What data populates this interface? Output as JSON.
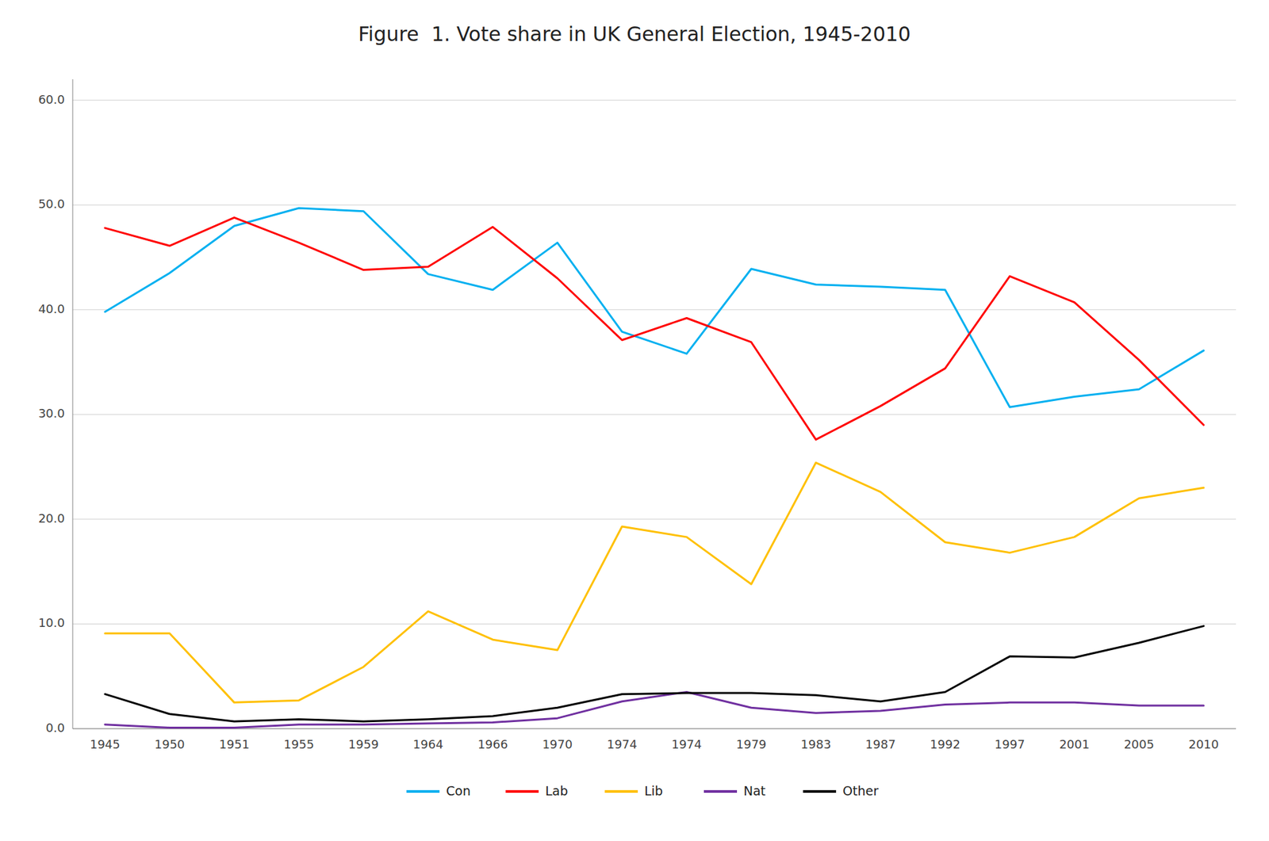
{
  "chart_data": {
    "type": "line",
    "title": "Figure  1. Vote share in UK General Election, 1945-2010",
    "categories": [
      "1945",
      "1950",
      "1951",
      "1955",
      "1959",
      "1964",
      "1966",
      "1970",
      "1974",
      "1974",
      "1979",
      "1983",
      "1987",
      "1992",
      "1997",
      "2001",
      "2005",
      "2010"
    ],
    "series": [
      {
        "name": "Con",
        "color": "#00B0F0",
        "values": [
          39.8,
          43.5,
          48.0,
          49.7,
          49.4,
          43.4,
          41.9,
          46.4,
          37.9,
          35.8,
          43.9,
          42.4,
          42.2,
          41.9,
          30.7,
          31.7,
          32.4,
          36.1
        ]
      },
      {
        "name": "Lab",
        "color": "#FF0000",
        "values": [
          47.8,
          46.1,
          48.8,
          46.4,
          43.8,
          44.1,
          47.9,
          43.0,
          37.1,
          39.2,
          36.9,
          27.6,
          30.8,
          34.4,
          43.2,
          40.7,
          35.2,
          29.0
        ]
      },
      {
        "name": "Lib",
        "color": "#FFC000",
        "values": [
          9.1,
          9.1,
          2.5,
          2.7,
          5.9,
          11.2,
          8.5,
          7.5,
          19.3,
          18.3,
          13.8,
          25.4,
          22.6,
          17.8,
          16.8,
          18.3,
          22.0,
          23.0
        ]
      },
      {
        "name": "Nat",
        "color": "#7030A0",
        "values": [
          0.4,
          0.1,
          0.1,
          0.4,
          0.4,
          0.5,
          0.6,
          1.0,
          2.6,
          3.5,
          2.0,
          1.5,
          1.7,
          2.3,
          2.5,
          2.5,
          2.2,
          2.2
        ]
      },
      {
        "name": "Other",
        "color": "#000000",
        "values": [
          3.3,
          1.4,
          0.7,
          0.9,
          0.7,
          0.9,
          1.2,
          2.0,
          3.3,
          3.4,
          3.4,
          3.2,
          2.6,
          3.5,
          6.9,
          6.8,
          8.2,
          9.8
        ]
      }
    ],
    "ylim": [
      0.0,
      62.0
    ],
    "yticks": [
      {
        "value": 0.0,
        "label": "0.0"
      },
      {
        "value": 10.0,
        "label": "10.0"
      },
      {
        "value": 20.0,
        "label": "20.0"
      },
      {
        "value": 30.0,
        "label": "30.0"
      },
      {
        "value": 40.0,
        "label": "40.0"
      },
      {
        "value": 50.0,
        "label": "50.0"
      },
      {
        "value": 60.0,
        "label": "60.0"
      }
    ],
    "grid": true,
    "legend": "bottom"
  }
}
